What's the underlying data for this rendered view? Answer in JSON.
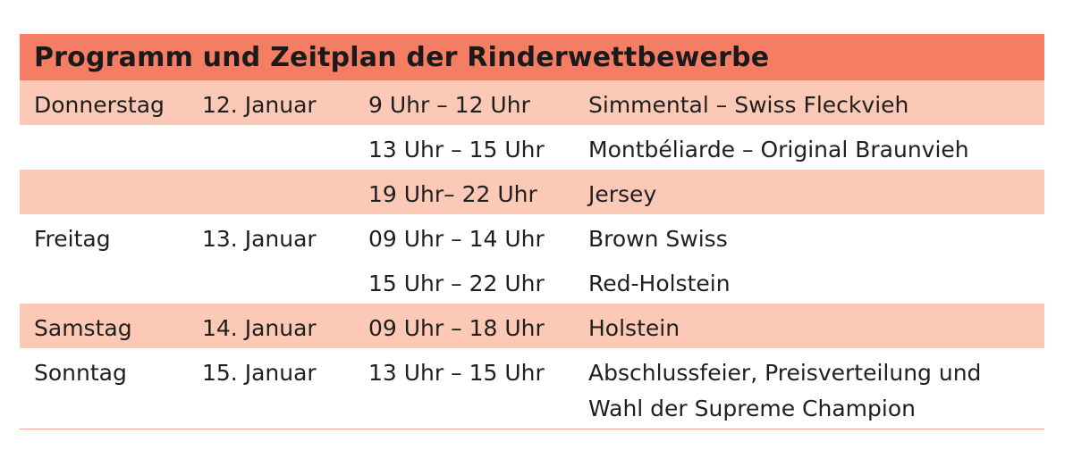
{
  "title": "Programm und Zeitplan der Rinderwettbewerbe",
  "rows": [
    {
      "day": "Donnerstag",
      "date": "12. Januar",
      "time": "9 Uhr – 12 Uhr",
      "event": "Simmental – Swiss Fleckvieh"
    },
    {
      "day": "",
      "date": "",
      "time": "13 Uhr – 15 Uhr",
      "event": "Montbéliarde – Original Braunvieh"
    },
    {
      "day": "",
      "date": "",
      "time": "19 Uhr– 22 Uhr",
      "event": "Jersey"
    },
    {
      "day": "Freitag",
      "date": "13. Januar",
      "time": "09 Uhr – 14 Uhr",
      "event": "Brown Swiss"
    },
    {
      "day": "",
      "date": "",
      "time": "15 Uhr – 22 Uhr",
      "event": "Red-Holstein"
    },
    {
      "day": "Samstag",
      "date": "14. Januar",
      "time": "09 Uhr – 18 Uhr",
      "event": "Holstein"
    },
    {
      "day": "Sonntag",
      "date": "15. Januar",
      "time": "13 Uhr – 15 Uhr",
      "event": "Abschlussfeier, Preisverteilung und Wahl der Supreme Champion"
    }
  ],
  "colors": {
    "header": "#f47d63",
    "shade": "#fbc9b6",
    "rule": "#f4a48e"
  }
}
